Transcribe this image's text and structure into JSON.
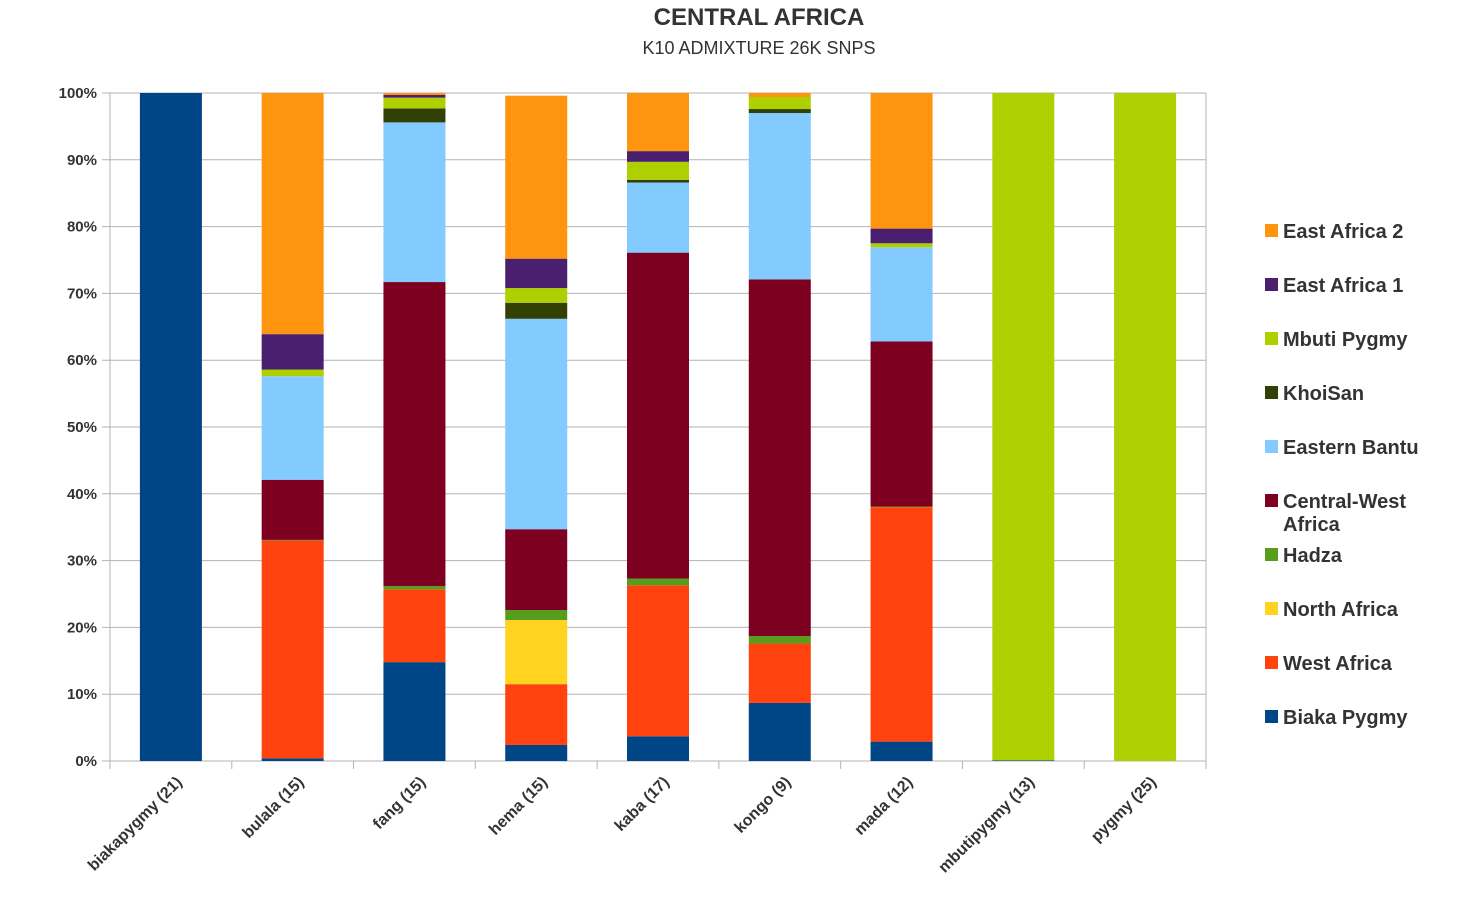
{
  "chart_data": {
    "type": "bar",
    "stacked": true,
    "normalized": true,
    "title": "CENTRAL AFRICA",
    "subtitle": "K10 ADMIXTURE 26K SNPS",
    "xlabel": "",
    "ylabel": "",
    "ylim": [
      0,
      100
    ],
    "y_ticks": [
      "0%",
      "10%",
      "20%",
      "30%",
      "40%",
      "50%",
      "60%",
      "70%",
      "80%",
      "90%",
      "100%"
    ],
    "grid": true,
    "legend_position": "right",
    "categories": [
      "biakapygmy (21)",
      "bulala (15)",
      "fang (15)",
      "hema (15)",
      "kaba (17)",
      "kongo (9)",
      "mada (12)",
      "mbutipygmy (13)",
      "pygmy (25)"
    ],
    "series": [
      {
        "name": "Biaka Pygmy",
        "color": "#004586",
        "values": [
          100,
          0.4,
          14.8,
          2.4,
          3.7,
          8.7,
          2.9,
          0.1,
          0
        ]
      },
      {
        "name": "West Africa",
        "color": "#ff420e",
        "values": [
          0,
          32.6,
          10.9,
          9.1,
          22.6,
          8.9,
          35.1,
          0,
          0
        ]
      },
      {
        "name": "North Africa",
        "color": "#ffd320",
        "values": [
          0,
          0,
          0,
          9.6,
          0,
          0,
          0,
          0,
          0
        ]
      },
      {
        "name": "Hadza",
        "color": "#579d1c",
        "values": [
          0,
          0.1,
          0.5,
          1.5,
          1.0,
          1.1,
          0.1,
          0,
          0
        ]
      },
      {
        "name": "Central-West Africa",
        "color": "#7e0021",
        "values": [
          0,
          9.0,
          45.5,
          12.1,
          48.8,
          53.4,
          24.7,
          0,
          0
        ]
      },
      {
        "name": "Eastern Bantu",
        "color": "#83caff",
        "values": [
          0,
          15.5,
          23.9,
          31.5,
          10.5,
          24.9,
          14.1,
          0,
          0
        ]
      },
      {
        "name": "KhoiSan",
        "color": "#314004",
        "values": [
          0,
          0,
          2.1,
          2.4,
          0.4,
          0.6,
          0,
          0,
          0
        ]
      },
      {
        "name": "Mbuti Pygmy",
        "color": "#aecf00",
        "values": [
          0,
          1.0,
          1.6,
          2.2,
          2.7,
          1.8,
          0.6,
          99.9,
          100
        ]
      },
      {
        "name": "East Africa 1",
        "color": "#4b1f6f",
        "values": [
          0,
          5.3,
          0.4,
          4.4,
          1.6,
          0,
          2.2,
          0,
          0
        ]
      },
      {
        "name": "East Africa 2",
        "color": "#ff950e",
        "values": [
          0,
          36.1,
          0.3,
          24.4,
          8.7,
          0.6,
          20.3,
          0,
          0
        ]
      }
    ],
    "legend": [
      {
        "label": "East Africa 2",
        "color": "#ff950e"
      },
      {
        "label": "East Africa 1",
        "color": "#4b1f6f"
      },
      {
        "label": "Mbuti Pygmy",
        "color": "#aecf00"
      },
      {
        "label": "KhoiSan",
        "color": "#314004"
      },
      {
        "label": "Eastern Bantu",
        "color": "#83caff"
      },
      {
        "label": "Central-West\nAfrica",
        "color": "#7e0021"
      },
      {
        "label": "Hadza",
        "color": "#579d1c"
      },
      {
        "label": "North Africa",
        "color": "#ffd320"
      },
      {
        "label": "West Africa",
        "color": "#ff420e"
      },
      {
        "label": "Biaka Pygmy",
        "color": "#004586"
      }
    ]
  }
}
